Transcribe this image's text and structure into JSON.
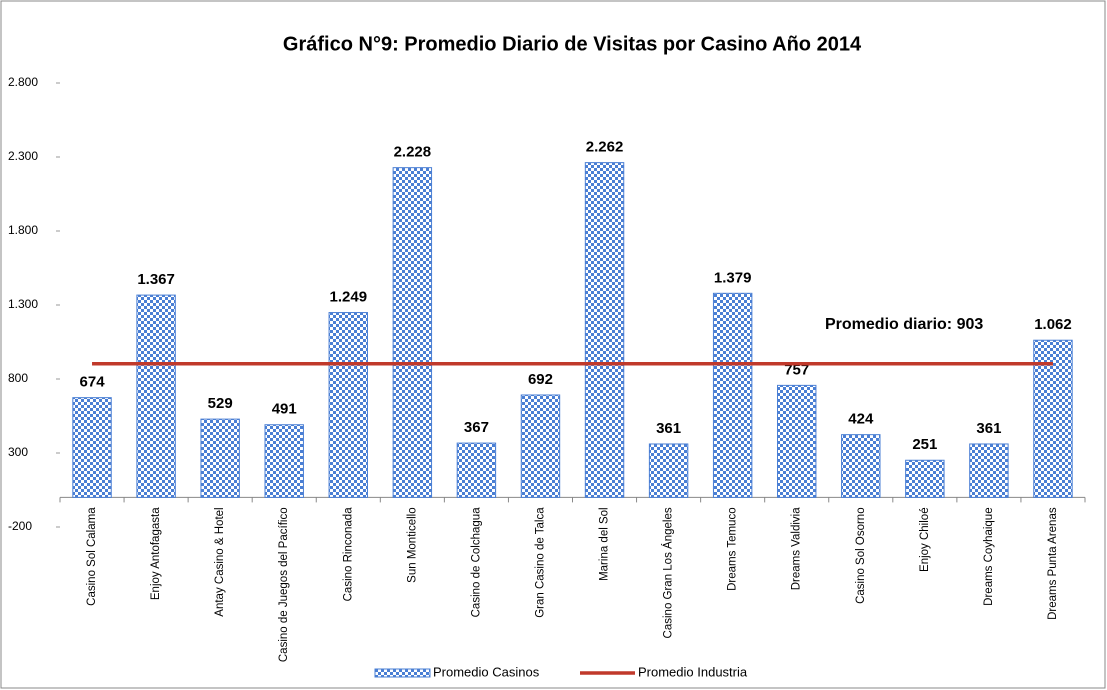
{
  "chart_data": {
    "type": "bar",
    "title": "Gráfico N°9: Promedio Diario de Visitas por Casino Año 2014",
    "categories": [
      "Casino Sol Calama",
      "Enjoy Antofagasta",
      "Antay Casino & Hotel",
      "Casino de Juegos del Pacífico",
      "Casino Rinconada",
      "Sun Monticello",
      "Casino de Colchagua",
      "Gran Casino de Talca",
      "Marina del Sol",
      "Casino Gran Los Ángeles",
      "Dreams Temuco",
      "Dreams Valdivia",
      "Casino Sol Osorno",
      "Enjoy Chiloé",
      "Dreams Coyhaique",
      "Dreams Punta Arenas"
    ],
    "series": [
      {
        "name": "Promedio Casinos",
        "type": "bar",
        "color": "#4a7fd4",
        "values": [
          674,
          1367,
          529,
          491,
          1249,
          2228,
          367,
          692,
          2262,
          361,
          1379,
          757,
          424,
          251,
          361,
          1062
        ],
        "value_labels": [
          "674",
          "1.367",
          "529",
          "491",
          "1.249",
          "2.228",
          "367",
          "692",
          "2.262",
          "361",
          "1.379",
          "757",
          "424",
          "251",
          "361",
          "1.062"
        ]
      },
      {
        "name": "Promedio Industria",
        "type": "line",
        "color": "#c0392b",
        "values": [
          903,
          903,
          903,
          903,
          903,
          903,
          903,
          903,
          903,
          903,
          903,
          903,
          903,
          903,
          903,
          903
        ]
      }
    ],
    "annotation": "Promedio diario:  903",
    "ylim": [
      -200,
      2800
    ],
    "yticks": [
      -200,
      300,
      800,
      {
        "value": 1300,
        "label": "1.300"
      },
      {
        "value": 1800,
        "label": "1.800"
      },
      {
        "value": 2300,
        "label": "2.300"
      },
      {
        "value": 2800,
        "label": "2.800"
      }
    ]
  }
}
